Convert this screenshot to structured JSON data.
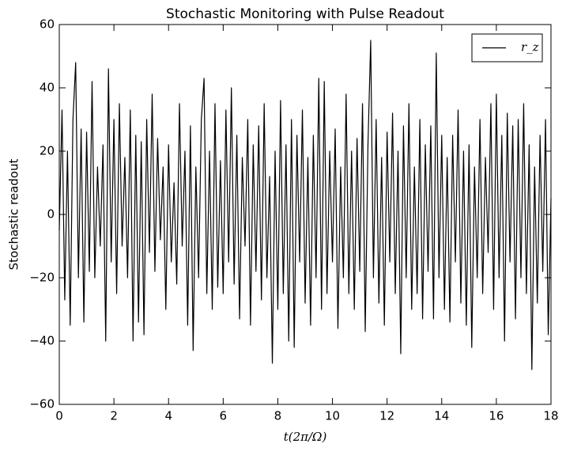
{
  "chart_data": {
    "type": "line",
    "title": "Stochastic Monitoring with Pulse Readout",
    "x_label": "t(2π/Ω)",
    "y_label": "Stochastic readout",
    "xlim": [
      0,
      18
    ],
    "xticks": [
      0,
      2,
      4,
      6,
      8,
      10,
      12,
      14,
      16,
      18
    ],
    "ylim": [
      -60,
      60
    ],
    "yticks": [
      {
        "value": -60,
        "label": "−60"
      },
      {
        "value": -40,
        "label": "−40"
      },
      {
        "value": -20,
        "label": "−20"
      },
      0,
      20,
      40,
      60
    ],
    "legend": "upper right",
    "grid": false,
    "x": [
      0.0,
      0.1,
      0.2,
      0.3,
      0.4,
      0.5,
      0.6,
      0.7,
      0.8,
      0.9,
      1.0,
      1.1,
      1.2,
      1.3,
      1.4,
      1.5,
      1.6,
      1.7,
      1.8,
      1.9,
      2.0,
      2.1,
      2.2,
      2.3,
      2.4,
      2.5,
      2.6,
      2.7,
      2.8,
      2.9,
      3.0,
      3.1,
      3.2,
      3.3,
      3.4,
      3.5,
      3.6,
      3.7,
      3.8,
      3.9,
      4.0,
      4.1,
      4.2,
      4.3,
      4.4,
      4.5,
      4.6,
      4.7,
      4.8,
      4.9,
      5.0,
      5.1,
      5.2,
      5.3,
      5.4,
      5.5,
      5.6,
      5.7,
      5.8,
      5.9,
      6.0,
      6.1,
      6.2,
      6.3,
      6.4,
      6.5,
      6.6,
      6.7,
      6.8,
      6.9,
      7.0,
      7.1,
      7.2,
      7.3,
      7.4,
      7.5,
      7.6,
      7.7,
      7.8,
      7.9,
      8.0,
      8.1,
      8.2,
      8.3,
      8.4,
      8.5,
      8.6,
      8.7,
      8.8,
      8.9,
      9.0,
      9.1,
      9.2,
      9.3,
      9.4,
      9.5,
      9.6,
      9.7,
      9.8,
      9.9,
      10.0,
      10.1,
      10.2,
      10.3,
      10.4,
      10.5,
      10.6,
      10.7,
      10.8,
      10.9,
      11.0,
      11.1,
      11.2,
      11.3,
      11.4,
      11.5,
      11.6,
      11.7,
      11.8,
      11.9,
      12.0,
      12.1,
      12.2,
      12.3,
      12.4,
      12.5,
      12.6,
      12.7,
      12.8,
      12.9,
      13.0,
      13.1,
      13.2,
      13.3,
      13.4,
      13.5,
      13.6,
      13.7,
      13.8,
      13.9,
      14.0,
      14.1,
      14.2,
      14.3,
      14.4,
      14.5,
      14.6,
      14.7,
      14.8,
      14.9,
      15.0,
      15.1,
      15.2,
      15.3,
      15.4,
      15.5,
      15.6,
      15.7,
      15.8,
      15.9,
      16.0,
      16.1,
      16.2,
      16.3,
      16.4,
      16.5,
      16.6,
      16.7,
      16.8,
      16.9,
      17.0,
      17.1,
      17.2,
      17.3,
      17.4,
      17.5,
      17.6,
      17.7,
      17.8,
      17.9,
      18.0
    ],
    "series": [
      {
        "name": "r_z",
        "color": "#000000",
        "values": [
          -5,
          33,
          -27,
          20,
          -35,
          30,
          48,
          -20,
          27,
          -34,
          26,
          -18,
          42,
          -20,
          15,
          -10,
          22,
          -40,
          46,
          -15,
          30,
          -25,
          35,
          -10,
          18,
          -20,
          33,
          -40,
          25,
          -34,
          23,
          -38,
          30,
          -12,
          38,
          -18,
          24,
          -8,
          15,
          -30,
          22,
          -15,
          10,
          -22,
          35,
          -10,
          20,
          -35,
          28,
          -43,
          15,
          -20,
          30,
          43,
          -25,
          20,
          -30,
          35,
          -23,
          17,
          -25,
          33,
          -15,
          40,
          -22,
          25,
          -33,
          18,
          -10,
          30,
          -35,
          22,
          -18,
          28,
          -27,
          35,
          -20,
          12,
          -47,
          20,
          -30,
          36,
          -25,
          22,
          -40,
          30,
          -42,
          25,
          -15,
          33,
          -28,
          18,
          -35,
          25,
          -20,
          43,
          -30,
          42,
          -25,
          20,
          -15,
          27,
          -36,
          15,
          -20,
          38,
          -25,
          20,
          -30,
          24,
          -18,
          35,
          -37,
          22,
          55,
          -20,
          30,
          -28,
          18,
          -35,
          26,
          -15,
          32,
          -25,
          20,
          -44,
          28,
          -20,
          35,
          -30,
          15,
          -25,
          30,
          -33,
          22,
          -18,
          28,
          -33,
          51,
          -20,
          25,
          -30,
          18,
          -34,
          25,
          -15,
          33,
          -28,
          20,
          -35,
          22,
          -42,
          15,
          -20,
          30,
          -25,
          18,
          -12,
          35,
          -30,
          38,
          -20,
          25,
          -40,
          32,
          -15,
          28,
          -33,
          30,
          -20,
          35,
          -25,
          22,
          -49,
          15,
          -28,
          25,
          -18,
          30,
          -38,
          5
        ]
      }
    ]
  }
}
